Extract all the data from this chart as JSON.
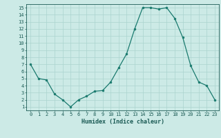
{
  "x": [
    0,
    1,
    2,
    3,
    4,
    5,
    6,
    7,
    8,
    9,
    10,
    11,
    12,
    13,
    14,
    15,
    16,
    17,
    18,
    19,
    20,
    21,
    22,
    23
  ],
  "y": [
    7.0,
    5.0,
    4.8,
    2.8,
    2.0,
    1.0,
    2.0,
    2.5,
    3.2,
    3.3,
    4.5,
    6.5,
    8.5,
    12.0,
    15.0,
    15.0,
    14.8,
    15.0,
    13.5,
    10.8,
    6.8,
    4.5,
    4.0,
    2.0
  ],
  "line_color": "#1a7a6e",
  "bg_color": "#cceae6",
  "grid_color": "#aad4ce",
  "xlabel": "Humidex (Indice chaleur)",
  "xlim": [
    -0.5,
    23.5
  ],
  "ylim": [
    0.5,
    15.5
  ],
  "xticks": [
    0,
    1,
    2,
    3,
    4,
    5,
    6,
    7,
    8,
    9,
    10,
    11,
    12,
    13,
    14,
    15,
    16,
    17,
    18,
    19,
    20,
    21,
    22,
    23
  ],
  "yticks": [
    1,
    2,
    3,
    4,
    5,
    6,
    7,
    8,
    9,
    10,
    11,
    12,
    13,
    14,
    15
  ],
  "font_color": "#1a5a54",
  "tick_fontsize": 5.0,
  "xlabel_fontsize": 6.0
}
